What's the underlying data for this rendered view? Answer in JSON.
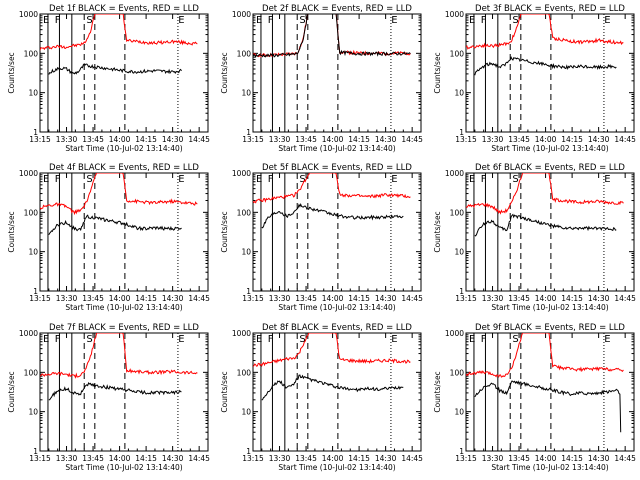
{
  "figure": {
    "background": "#ffffff",
    "events_color": "#000000",
    "lld_color": "#ff0000"
  },
  "chart_data": [
    {
      "type": "line",
      "title": "Det 1f BLACK = Events, RED = LLD",
      "xlabel": "Start Time (10-Jul-02 13:14:40)",
      "ylabel": "Counts/sec",
      "yscale": "log",
      "ylim": [
        1,
        1000
      ],
      "xticks": [
        "13:15",
        "13:30",
        "13:45",
        "14:00",
        "14:15",
        "14:30",
        "14:45"
      ],
      "yticks": [
        "1",
        "10",
        "100",
        "1000"
      ],
      "series": [
        {
          "name": "LLD",
          "x": [
            "13:15",
            "13:20",
            "13:25",
            "13:30",
            "13:33",
            "13:36",
            "13:40",
            "13:43",
            "13:46",
            "14:02",
            "14:04",
            "14:10",
            "14:15",
            "14:20",
            "14:25",
            "14:30",
            "14:35",
            "14:40",
            "14:44"
          ],
          "values": [
            130,
            140,
            150,
            145,
            155,
            160,
            180,
            300,
            1000,
            1000,
            210,
            200,
            190,
            185,
            190,
            200,
            190,
            180,
            175
          ]
        },
        {
          "name": "Events",
          "x": [
            "13:20",
            "13:22",
            "13:25",
            "13:28",
            "13:30",
            "13:34",
            "13:37",
            "13:40",
            "14:04",
            "14:10",
            "14:15",
            "14:20",
            "14:25",
            "14:30",
            "14:35"
          ],
          "values": [
            30,
            35,
            40,
            42,
            40,
            30,
            35,
            50,
            35,
            34,
            35,
            36,
            35,
            34,
            36
          ]
        }
      ],
      "flags": [
        "E",
        "F",
        "S",
        "E"
      ]
    },
    {
      "type": "line",
      "title": "Det 2f BLACK = Events, RED = LLD",
      "xlabel": "Start Time (10-Jul-02 13:14:40)",
      "ylabel": "Counts/sec",
      "yscale": "log",
      "ylim": [
        1,
        1000
      ],
      "xticks": [
        "13:15",
        "13:30",
        "13:45",
        "14:00",
        "14:15",
        "14:30",
        "14:45"
      ],
      "yticks": [
        "1",
        "10",
        "100",
        "1000"
      ],
      "series": [
        {
          "name": "LLD",
          "x": [
            "13:15",
            "13:25",
            "13:35",
            "13:40",
            "13:43",
            "13:46",
            "14:02",
            "14:04",
            "14:15",
            "14:30",
            "14:44"
          ],
          "values": [
            90,
            90,
            95,
            100,
            200,
            1000,
            1000,
            110,
            100,
            100,
            100
          ]
        },
        {
          "name": "Events",
          "x": [
            "13:15",
            "13:25",
            "13:35",
            "13:40",
            "13:43",
            "13:46",
            "14:02",
            "14:04",
            "14:15",
            "14:30",
            "14:44"
          ],
          "values": [
            88,
            88,
            92,
            98,
            190,
            1000,
            1000,
            105,
            98,
            98,
            98
          ]
        }
      ],
      "flags": [
        "E",
        "F",
        "S",
        "E"
      ]
    },
    {
      "type": "line",
      "title": "Det 3f BLACK = Events, RED = LLD",
      "xlabel": "Start Time (10-Jul-02 13:14:40)",
      "ylabel": "Counts/sec",
      "yscale": "log",
      "ylim": [
        1,
        1000
      ],
      "xticks": [
        "13:15",
        "13:30",
        "13:45",
        "14:00",
        "14:15",
        "14:30",
        "14:45"
      ],
      "yticks": [
        "1",
        "10",
        "100",
        "1000"
      ],
      "series": [
        {
          "name": "LLD",
          "x": [
            "13:15",
            "13:20",
            "13:25",
            "13:30",
            "13:35",
            "13:40",
            "13:43",
            "13:46",
            "14:02",
            "14:04",
            "14:10",
            "14:15",
            "14:20",
            "14:25",
            "14:30",
            "14:35",
            "14:40",
            "14:44"
          ],
          "values": [
            140,
            150,
            160,
            155,
            165,
            190,
            350,
            1000,
            1000,
            240,
            220,
            200,
            195,
            200,
            215,
            200,
            190,
            185
          ]
        },
        {
          "name": "Events",
          "x": [
            "13:20",
            "13:23",
            "13:26",
            "13:30",
            "13:34",
            "13:37",
            "13:40",
            "14:04",
            "14:10",
            "14:15",
            "14:20",
            "14:25",
            "14:30",
            "14:35",
            "14:40"
          ],
          "values": [
            30,
            40,
            50,
            55,
            45,
            50,
            75,
            48,
            45,
            44,
            46,
            45,
            44,
            46,
            45
          ]
        }
      ],
      "flags": [
        "E",
        "F",
        "S",
        "E"
      ]
    },
    {
      "type": "line",
      "title": "Det 4f BLACK = Events, RED = LLD",
      "xlabel": "Start Time (10-Jul-02 13:14:40)",
      "ylabel": "Counts/sec",
      "yscale": "log",
      "ylim": [
        1,
        1000
      ],
      "xticks": [
        "13:15",
        "13:30",
        "13:45",
        "14:00",
        "14:15",
        "14:30",
        "14:45"
      ],
      "yticks": [
        "1",
        "10",
        "100",
        "1000"
      ],
      "series": [
        {
          "name": "LLD",
          "x": [
            "13:15",
            "13:20",
            "13:25",
            "13:30",
            "13:34",
            "13:38",
            "13:41",
            "13:44",
            "13:47",
            "14:02",
            "14:04",
            "14:10",
            "14:15",
            "14:20",
            "14:25",
            "14:30",
            "14:35",
            "14:40",
            "14:44"
          ],
          "values": [
            130,
            150,
            160,
            140,
            100,
            110,
            170,
            400,
            1000,
            1000,
            200,
            190,
            180,
            175,
            185,
            190,
            180,
            170,
            165
          ]
        },
        {
          "name": "Events",
          "x": [
            "13:20",
            "13:23",
            "13:26",
            "13:30",
            "13:34",
            "13:38",
            "13:41",
            "14:04",
            "14:10",
            "14:15",
            "14:20",
            "14:25",
            "14:30",
            "14:35"
          ],
          "values": [
            25,
            40,
            50,
            55,
            40,
            35,
            80,
            50,
            40,
            38,
            40,
            39,
            38,
            40
          ]
        }
      ],
      "flags": [
        "E",
        "F",
        "S",
        "E"
      ]
    },
    {
      "type": "line",
      "title": "Det 5f BLACK = Events, RED = LLD",
      "xlabel": "Start Time (10-Jul-02 13:14:40)",
      "ylabel": "Counts/sec",
      "yscale": "log",
      "ylim": [
        1,
        1000
      ],
      "xticks": [
        "13:15",
        "13:30",
        "13:45",
        "14:00",
        "14:15",
        "14:30",
        "14:45"
      ],
      "yticks": [
        "1",
        "10",
        "100",
        "1000"
      ],
      "series": [
        {
          "name": "LLD",
          "x": [
            "13:15",
            "13:20",
            "13:25",
            "13:30",
            "13:34",
            "13:38",
            "13:41",
            "13:44",
            "13:47",
            "14:02",
            "14:04",
            "14:10",
            "14:15",
            "14:20",
            "14:25",
            "14:30",
            "14:35",
            "14:40",
            "14:44"
          ],
          "values": [
            190,
            200,
            220,
            240,
            250,
            270,
            350,
            600,
            1000,
            1000,
            280,
            270,
            260,
            250,
            260,
            280,
            270,
            260,
            250
          ]
        },
        {
          "name": "Events",
          "x": [
            "13:20",
            "13:23",
            "13:26",
            "13:30",
            "13:34",
            "13:38",
            "13:41",
            "14:04",
            "14:10",
            "14:15",
            "14:20",
            "14:25",
            "14:30",
            "14:35",
            "14:40"
          ],
          "values": [
            40,
            70,
            90,
            110,
            80,
            100,
            150,
            80,
            75,
            72,
            74,
            75,
            76,
            78,
            80
          ]
        }
      ],
      "flags": [
        "E",
        "F",
        "S",
        "E"
      ]
    },
    {
      "type": "line",
      "title": "Det 6f BLACK = Events, RED = LLD",
      "xlabel": "Start Time (10-Jul-02 13:14:40)",
      "ylabel": "Counts/sec",
      "yscale": "log",
      "ylim": [
        1,
        1000
      ],
      "xticks": [
        "13:15",
        "13:30",
        "13:45",
        "14:00",
        "14:15",
        "14:30",
        "14:45"
      ],
      "yticks": [
        "1",
        "10",
        "100",
        "1000"
      ],
      "series": [
        {
          "name": "LLD",
          "x": [
            "13:15",
            "13:20",
            "13:25",
            "13:30",
            "13:34",
            "13:38",
            "13:41",
            "13:44",
            "13:47",
            "14:02",
            "14:04",
            "14:10",
            "14:15",
            "14:20",
            "14:25",
            "14:30",
            "14:35",
            "14:40",
            "14:44"
          ],
          "values": [
            140,
            150,
            160,
            140,
            100,
            110,
            180,
            400,
            1000,
            1000,
            210,
            200,
            185,
            180,
            185,
            190,
            180,
            175,
            170
          ]
        },
        {
          "name": "Events",
          "x": [
            "13:20",
            "13:23",
            "13:26",
            "13:30",
            "13:34",
            "13:38",
            "13:41",
            "14:04",
            "14:10",
            "14:15",
            "14:20",
            "14:25",
            "14:30",
            "14:35",
            "14:40"
          ],
          "values": [
            25,
            40,
            55,
            60,
            40,
            35,
            85,
            45,
            40,
            38,
            40,
            39,
            38,
            40,
            36
          ]
        }
      ],
      "flags": [
        "E",
        "F",
        "S",
        "E"
      ]
    },
    {
      "type": "line",
      "title": "Det 7f BLACK = Events, RED = LLD",
      "xlabel": "Start Time (10-Jul-02 13:14:40)",
      "ylabel": "Counts/sec",
      "yscale": "log",
      "ylim": [
        1,
        1000
      ],
      "xticks": [
        "13:15",
        "13:30",
        "13:45",
        "14:00",
        "14:15",
        "14:30",
        "14:45"
      ],
      "yticks": [
        "1",
        "10",
        "100",
        "1000"
      ],
      "series": [
        {
          "name": "LLD",
          "x": [
            "13:15",
            "13:20",
            "13:25",
            "13:30",
            "13:34",
            "13:38",
            "13:41",
            "13:44",
            "13:47",
            "14:02",
            "14:04",
            "14:10",
            "14:15",
            "14:20",
            "14:25",
            "14:30",
            "14:35",
            "14:40",
            "14:44"
          ],
          "values": [
            85,
            90,
            95,
            90,
            80,
            85,
            120,
            300,
            1000,
            1000,
            110,
            105,
            100,
            100,
            102,
            105,
            100,
            98,
            95
          ]
        },
        {
          "name": "Events",
          "x": [
            "13:20",
            "13:23",
            "13:26",
            "13:30",
            "13:34",
            "13:38",
            "13:41",
            "14:04",
            "14:10",
            "14:15",
            "14:20",
            "14:25",
            "14:30",
            "14:35"
          ],
          "values": [
            20,
            28,
            35,
            38,
            30,
            28,
            50,
            35,
            32,
            30,
            31,
            30,
            31,
            32
          ]
        }
      ],
      "flags": [
        "E",
        "F",
        "S",
        "E"
      ]
    },
    {
      "type": "line",
      "title": "Det 8f BLACK = Events, RED = LLD",
      "xlabel": "Start Time (10-Jul-02 13:14:40)",
      "ylabel": "Counts/sec",
      "yscale": "log",
      "ylim": [
        1,
        1000
      ],
      "xticks": [
        "13:15",
        "13:30",
        "13:45",
        "14:00",
        "14:15",
        "14:30",
        "14:45"
      ],
      "yticks": [
        "1",
        "10",
        "100",
        "1000"
      ],
      "series": [
        {
          "name": "LLD",
          "x": [
            "13:15",
            "13:20",
            "13:25",
            "13:30",
            "13:34",
            "13:38",
            "13:41",
            "13:44",
            "13:47",
            "14:02",
            "14:04",
            "14:10",
            "14:15",
            "14:20",
            "14:25",
            "14:30",
            "14:35",
            "14:40",
            "14:44"
          ],
          "values": [
            150,
            160,
            180,
            200,
            220,
            230,
            300,
            600,
            1000,
            1000,
            210,
            200,
            195,
            190,
            195,
            200,
            195,
            190,
            185
          ]
        },
        {
          "name": "Events",
          "x": [
            "13:20",
            "13:23",
            "13:26",
            "13:30",
            "13:34",
            "13:38",
            "13:41",
            "14:04",
            "14:10",
            "14:15",
            "14:20",
            "14:25",
            "14:30",
            "14:35",
            "14:40"
          ],
          "values": [
            20,
            30,
            45,
            60,
            40,
            50,
            80,
            40,
            38,
            36,
            38,
            37,
            38,
            40,
            42
          ]
        }
      ],
      "flags": [
        "E",
        "F",
        "S",
        "E"
      ]
    },
    {
      "type": "line",
      "title": "Det 9f BLACK = Events, RED = LLD",
      "xlabel": "Start Time (10-Jul-02 13:14:40)",
      "ylabel": "Counts/sec",
      "yscale": "log",
      "ylim": [
        1,
        1000
      ],
      "xticks": [
        "13:15",
        "13:30",
        "13:45",
        "14:00",
        "14:15",
        "14:30",
        "14:45"
      ],
      "yticks": [
        "1",
        "10",
        "100",
        "1000"
      ],
      "series": [
        {
          "name": "LLD",
          "x": [
            "13:15",
            "13:20",
            "13:25",
            "13:30",
            "13:34",
            "13:38",
            "13:41",
            "13:44",
            "13:47",
            "14:02",
            "14:04",
            "14:10",
            "14:15",
            "14:20",
            "14:25",
            "14:30",
            "14:35",
            "14:40",
            "14:44"
          ],
          "values": [
            90,
            95,
            100,
            90,
            80,
            85,
            130,
            350,
            1000,
            1000,
            140,
            130,
            120,
            118,
            120,
            125,
            120,
            118,
            115
          ]
        },
        {
          "name": "Events",
          "x": [
            "13:20",
            "13:23",
            "13:26",
            "13:30",
            "13:34",
            "13:38",
            "13:41",
            "14:04",
            "14:10",
            "14:15",
            "14:20",
            "14:25",
            "14:30",
            "14:35",
            "14:40",
            "14:42",
            "14:42.5"
          ],
          "values": [
            25,
            35,
            45,
            50,
            35,
            30,
            60,
            35,
            30,
            28,
            30,
            29,
            30,
            32,
            35,
            30,
            3
          ]
        }
      ],
      "flags": [
        "E",
        "F",
        "S",
        "E"
      ]
    }
  ]
}
